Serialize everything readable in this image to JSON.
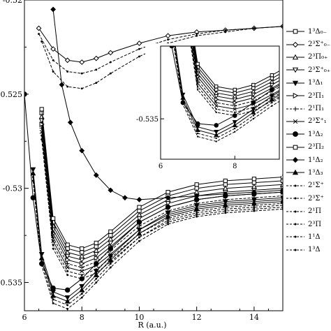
{
  "chart_data": [
    {
      "type": "line",
      "xlabel": "R (a.u.)",
      "ylabel": "",
      "xlim": [
        6,
        15
      ],
      "ylim": [
        -0.5365,
        -0.52
      ],
      "xticks": [
        "6",
        "8",
        "10",
        "12",
        "14"
      ],
      "yticks": [
        "-0.52",
        "-0.525",
        "-0.53",
        "-0.535"
      ],
      "series": [
        {
          "name": "1³Δ₀₋",
          "marker": "square",
          "dash": false,
          "x": [
            6.6,
            7.0,
            7.5,
            8.0,
            8.5,
            9.0,
            10.0,
            11.0,
            12.0,
            13.0,
            14.0,
            15.0
          ],
          "y": [
            -0.526,
            -0.5318,
            -0.5332,
            -0.5334,
            -0.5331,
            -0.5325,
            -0.5312,
            -0.5304,
            -0.53,
            -0.5298,
            -0.5297,
            -0.5296
          ]
        },
        {
          "name": "2³Σ⁺₀₋",
          "marker": "diamond",
          "dash": false,
          "x": [
            6.5,
            7.0,
            7.5,
            8.0,
            8.5,
            9.0,
            10.0,
            11.0,
            12.0,
            13.0,
            14.0,
            15.0
          ],
          "y": [
            -0.5215,
            -0.5226,
            -0.5232,
            -0.5233,
            -0.5231,
            -0.5228,
            -0.5223,
            -0.5219,
            -0.5217,
            -0.5216,
            -0.5215,
            -0.5214
          ]
        },
        {
          "name": "2³Π₀₊",
          "marker": "triangle-up",
          "dash": false,
          "x": [
            6.6,
            7.0,
            7.5,
            8.0,
            8.5,
            9.0,
            10.0,
            11.0,
            12.0,
            13.0,
            14.0,
            15.0
          ],
          "y": [
            -0.5262,
            -0.532,
            -0.5334,
            -0.5336,
            -0.5333,
            -0.5327,
            -0.5314,
            -0.5306,
            -0.5302,
            -0.53,
            -0.5299,
            -0.5298
          ]
        },
        {
          "name": "2³Σ⁺₀₊",
          "marker": "triangle-down",
          "dash": false,
          "x": [
            6.6,
            7.0,
            7.5,
            8.0,
            8.5,
            9.0,
            10.0,
            11.0,
            12.0,
            13.0,
            14.0,
            15.0
          ],
          "y": [
            -0.5264,
            -0.5322,
            -0.5336,
            -0.5338,
            -0.5335,
            -0.5329,
            -0.5316,
            -0.5308,
            -0.5304,
            -0.5302,
            -0.5301,
            -0.53
          ]
        },
        {
          "name": "1³Δ₁",
          "marker": "triangle-down-filled",
          "dash": false,
          "x": [
            6.3,
            6.6,
            7.0,
            7.5,
            8.0,
            8.5,
            9.0,
            10.0,
            11.0,
            12.0,
            13.0,
            14.0,
            15.0
          ],
          "y": [
            -0.529,
            -0.5335,
            -0.5355,
            -0.5358,
            -0.5352,
            -0.5344,
            -0.5336,
            -0.5322,
            -0.5313,
            -0.5309,
            -0.5307,
            -0.5306,
            -0.5305
          ]
        },
        {
          "name": "2³Π₁",
          "marker": "triangle-right",
          "dash": false,
          "x": [
            6.6,
            7.0,
            7.5,
            8.0,
            8.5,
            9.0,
            10.0,
            11.0,
            12.0,
            13.0,
            14.0,
            15.0
          ],
          "y": [
            -0.5266,
            -0.5324,
            -0.5338,
            -0.534,
            -0.5337,
            -0.5331,
            -0.5318,
            -0.531,
            -0.5306,
            -0.5304,
            -0.5303,
            -0.5302
          ]
        },
        {
          "name": "2¹Π₁",
          "marker": "plus",
          "dash": true,
          "x": [
            6.6,
            7.0,
            7.5,
            8.0,
            8.5,
            9.0,
            10.0,
            11.0,
            12.0,
            13.0,
            14.0,
            15.0
          ],
          "y": [
            -0.5268,
            -0.5326,
            -0.534,
            -0.5342,
            -0.5339,
            -0.5333,
            -0.532,
            -0.5312,
            -0.5308,
            -0.5306,
            -0.5305,
            -0.5304
          ]
        },
        {
          "name": "2³Σ⁺₁",
          "marker": "x",
          "dash": false,
          "x": [
            6.6,
            7.0,
            7.5,
            8.0,
            8.5,
            9.0,
            10.0,
            11.0,
            12.0,
            13.0,
            14.0,
            15.0
          ],
          "y": [
            -0.527,
            -0.5328,
            -0.5342,
            -0.5344,
            -0.5341,
            -0.5335,
            -0.5322,
            -0.5314,
            -0.531,
            -0.5308,
            -0.5307,
            -0.5306
          ]
        },
        {
          "name": "1³Δ₂",
          "marker": "circle-filled",
          "dash": false,
          "x": [
            6.0,
            6.3,
            6.6,
            7.0,
            7.5,
            8.0,
            8.5,
            9.0,
            10.0,
            11.0,
            12.0,
            13.0,
            14.0,
            15.0
          ],
          "y": [
            -0.525,
            -0.5305,
            -0.534,
            -0.5353,
            -0.5354,
            -0.5348,
            -0.534,
            -0.5332,
            -0.5318,
            -0.531,
            -0.5306,
            -0.5304,
            -0.5303,
            -0.5302
          ]
        },
        {
          "name": "2³Π₂",
          "marker": "square",
          "dash": false,
          "x": [
            6.6,
            7.0,
            7.5,
            8.0,
            8.5,
            9.0,
            10.0,
            11.0,
            12.0,
            13.0,
            14.0,
            15.0
          ],
          "y": [
            -0.5258,
            -0.5316,
            -0.533,
            -0.5332,
            -0.5329,
            -0.5323,
            -0.531,
            -0.5302,
            -0.5298,
            -0.5296,
            -0.5295,
            -0.5294
          ]
        },
        {
          "name": "1¹Δ₂",
          "marker": "diamond-filled",
          "dash": false,
          "x": [
            7.0,
            7.3,
            7.6,
            8.0,
            8.5,
            9.0,
            9.5,
            10.0,
            11.0,
            12.0,
            13.0,
            14.0,
            15.0
          ],
          "y": [
            -0.5205,
            -0.5245,
            -0.5265,
            -0.528,
            -0.5293,
            -0.5301,
            -0.5305,
            -0.5306,
            -0.5305,
            -0.5304,
            -0.5303,
            -0.5302,
            -0.5301
          ]
        },
        {
          "name": "1³Δ₃",
          "marker": "triangle-up-filled",
          "dash": false,
          "x": [
            6.3,
            6.6,
            7.0,
            7.5,
            8.0,
            8.5,
            9.0,
            10.0,
            11.0,
            12.0,
            13.0,
            14.0,
            15.0
          ],
          "y": [
            -0.5292,
            -0.5337,
            -0.5357,
            -0.536,
            -0.5354,
            -0.5346,
            -0.5338,
            -0.5324,
            -0.5315,
            -0.5311,
            -0.5309,
            -0.5308,
            -0.5307
          ]
        },
        {
          "name": "2¹Σ⁺",
          "marker": "dot",
          "dash": true,
          "x": [
            6.5,
            7.0,
            7.5,
            8.0,
            8.5,
            9.0,
            10.0,
            11.0,
            12.0,
            13.0,
            14.0,
            15.0
          ],
          "y": [
            -0.5218,
            -0.5232,
            -0.5238,
            -0.5239,
            -0.5237,
            -0.5233,
            -0.5226,
            -0.5221,
            -0.5218,
            -0.5216,
            -0.5215,
            -0.5214
          ]
        },
        {
          "name": "2³Σ⁺",
          "marker": "dot",
          "dash": true,
          "x": [
            6.6,
            7.0,
            7.5,
            8.0,
            8.5,
            9.0,
            10.0,
            11.0,
            12.0,
            13.0,
            14.0,
            15.0
          ],
          "y": [
            -0.5222,
            -0.5238,
            -0.5246,
            -0.5247,
            -0.5244,
            -0.5239,
            -0.523,
            -0.5223,
            -0.5219,
            -0.5217,
            -0.5215,
            -0.5214
          ]
        },
        {
          "name": "2¹Π",
          "marker": "dot",
          "dash": true,
          "x": [
            6.6,
            7.0,
            7.5,
            8.0,
            8.5,
            9.0,
            10.0,
            11.0,
            12.0,
            13.0,
            14.0,
            15.0
          ],
          "y": [
            -0.5272,
            -0.533,
            -0.5344,
            -0.5346,
            -0.5343,
            -0.5337,
            -0.5324,
            -0.5316,
            -0.5312,
            -0.531,
            -0.5309,
            -0.5308
          ]
        },
        {
          "name": "2³Π",
          "marker": "dot",
          "dash": true,
          "x": [
            6.6,
            7.0,
            7.5,
            8.0,
            8.5,
            9.0,
            10.0,
            11.0,
            12.0,
            13.0,
            14.0,
            15.0
          ],
          "y": [
            -0.5274,
            -0.5332,
            -0.5346,
            -0.5348,
            -0.5345,
            -0.5339,
            -0.5326,
            -0.5318,
            -0.5314,
            -0.5312,
            -0.5311,
            -0.531
          ]
        },
        {
          "name": "1¹Δ",
          "marker": "dot",
          "dash": true,
          "x": [
            6.3,
            6.6,
            7.0,
            7.5,
            8.0,
            8.5,
            9.0,
            10.0,
            11.0,
            12.0,
            13.0,
            14.0,
            15.0
          ],
          "y": [
            -0.5294,
            -0.5339,
            -0.5359,
            -0.5362,
            -0.5356,
            -0.5348,
            -0.534,
            -0.5326,
            -0.5317,
            -0.5313,
            -0.5311,
            -0.531,
            -0.5309
          ]
        },
        {
          "name": "1³Δ",
          "marker": "dot",
          "dash": true,
          "x": [
            6.3,
            6.6,
            7.0,
            7.5,
            8.0,
            8.5,
            9.0,
            10.0,
            11.0,
            12.0,
            13.0,
            14.0,
            15.0
          ],
          "y": [
            -0.5296,
            -0.5341,
            -0.5361,
            -0.5364,
            -0.5358,
            -0.535,
            -0.5342,
            -0.5328,
            -0.5319,
            -0.5315,
            -0.5313,
            -0.5312,
            -0.5311
          ]
        }
      ]
    },
    {
      "type": "line",
      "inset": true,
      "xlim": [
        6,
        9.2
      ],
      "ylim": [
        -0.5375,
        -0.5305
      ],
      "xticks": [
        "6",
        "8"
      ],
      "yticks": [
        "-0.535"
      ],
      "series_source": "same series as main chart"
    }
  ]
}
